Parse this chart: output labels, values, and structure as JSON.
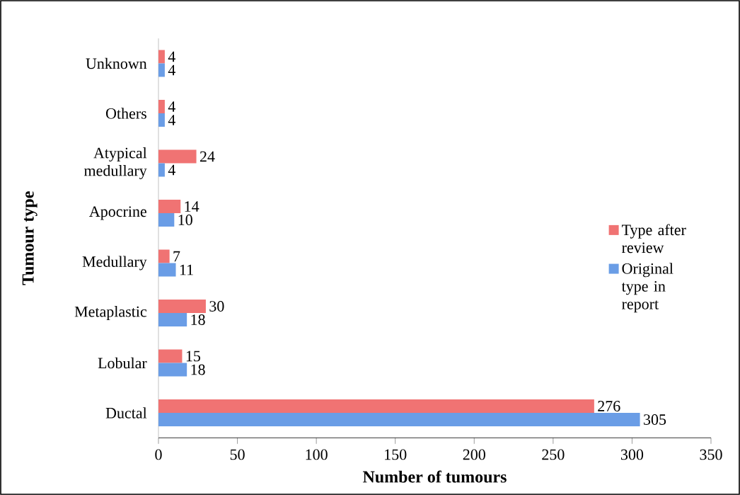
{
  "chart_data": {
    "type": "bar",
    "orientation": "horizontal",
    "xlabel": "Number of tumours",
    "ylabel": "Tumour type",
    "categories": [
      "Unknown",
      "Others",
      "Atypical medullary",
      "Apocrine",
      "Medullary",
      "Metaplastic",
      "Lobular",
      "Ductal"
    ],
    "series": [
      {
        "name": "Type after review",
        "color": "#f07373",
        "values": [
          4,
          4,
          24,
          14,
          7,
          30,
          15,
          276
        ]
      },
      {
        "name": "Original type in report",
        "color": "#6a9de6",
        "values": [
          4,
          4,
          4,
          10,
          11,
          18,
          18,
          305
        ]
      }
    ],
    "xlim": [
      0,
      350
    ],
    "xticks": [
      0,
      50,
      100,
      150,
      200,
      250,
      300,
      350
    ],
    "data_labels": true,
    "legend": "right",
    "grid": false
  }
}
